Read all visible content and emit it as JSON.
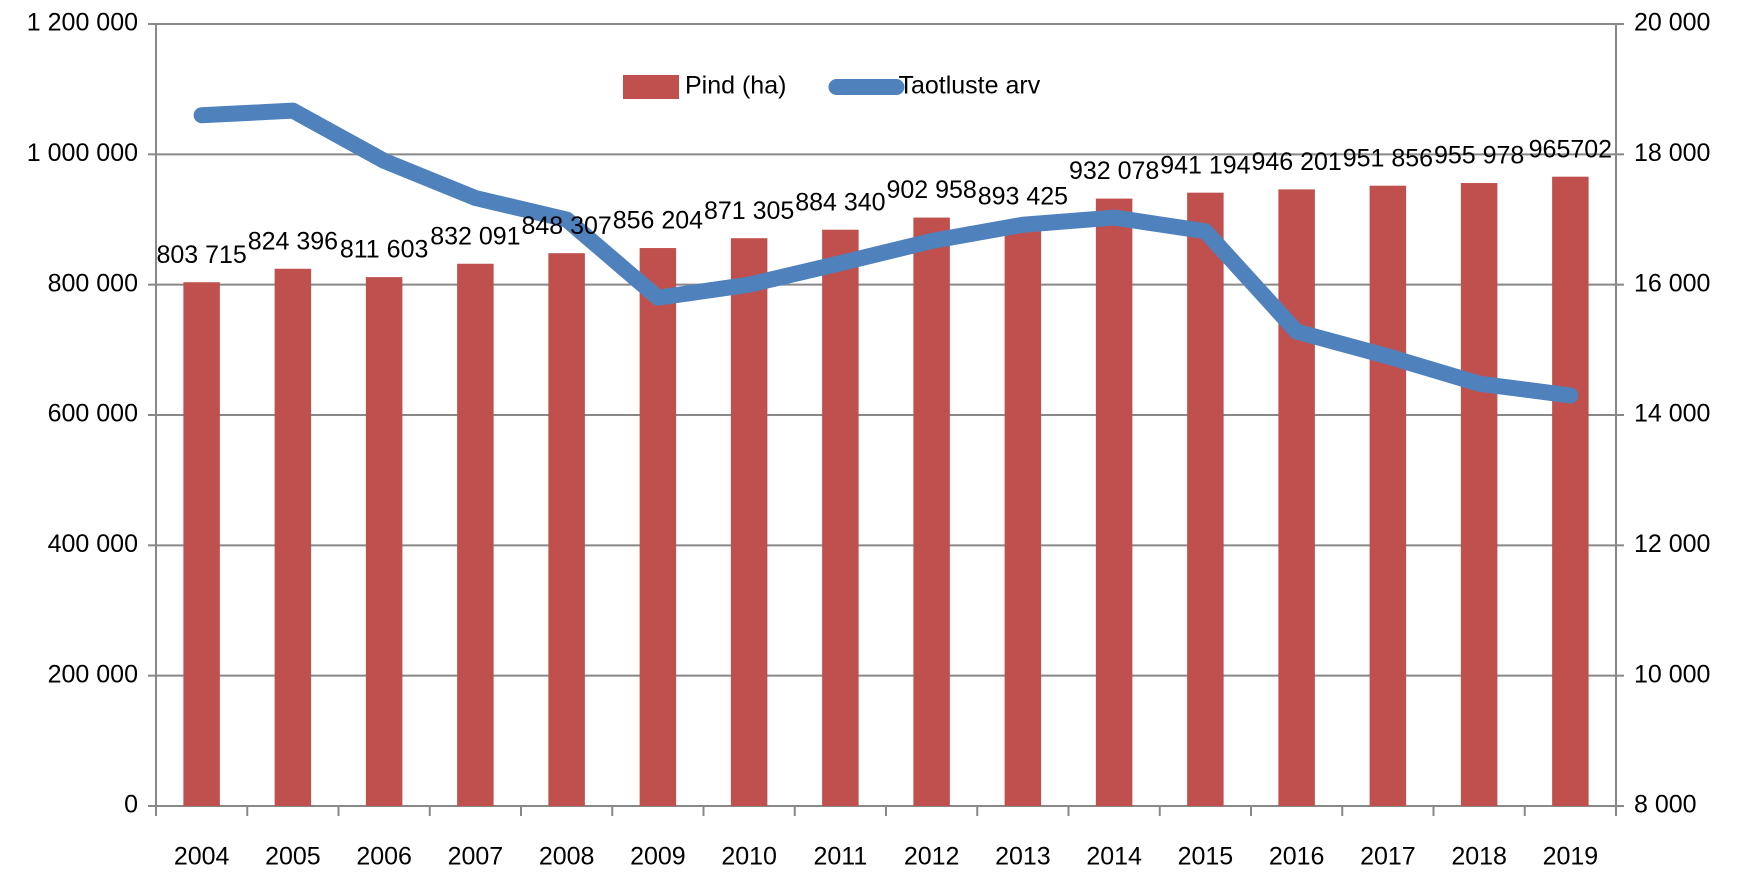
{
  "chart_data": {
    "type": "bar-line",
    "categories": [
      "2004",
      "2005",
      "2006",
      "2007",
      "2008",
      "2009",
      "2010",
      "2011",
      "2012",
      "2013",
      "2014",
      "2015",
      "2016",
      "2017",
      "2018",
      "2019"
    ],
    "series": [
      {
        "name": "Pind (ha)",
        "type": "bar",
        "color": "#c0504d",
        "axis": "y",
        "values": [
          803715,
          824396,
          811603,
          832091,
          848307,
          856204,
          871305,
          884340,
          902958,
          893425,
          932078,
          941194,
          946201,
          951856,
          955978,
          965702
        ],
        "value_labels": [
          "803 715",
          "824 396",
          "811 603",
          "832 091",
          "848 307",
          "856 204",
          "871 305",
          "884 340",
          "902 958",
          "893 425",
          "932 078",
          "941 194",
          "946 201",
          "951 856",
          "955 978",
          "965702"
        ]
      },
      {
        "name": "Taotluste arv",
        "type": "line",
        "color": "#4f81bd",
        "axis": "y2",
        "values": [
          18600,
          18670,
          17900,
          17330,
          17000,
          15800,
          16000,
          16330,
          16670,
          16920,
          17030,
          16820,
          15280,
          14900,
          14480,
          14300
        ]
      }
    ],
    "ylim": [
      0,
      1200000
    ],
    "yticks": [
      0,
      {
        "value": 200000,
        "label": "200 000"
      },
      {
        "value": 400000,
        "label": "400 000"
      },
      {
        "value": 600000,
        "label": "600 000"
      },
      {
        "value": 800000,
        "label": "800 000"
      },
      {
        "value": 1000000,
        "label": "1 000 000"
      },
      {
        "value": 1200000,
        "label": "1 200 000"
      }
    ],
    "y2lim": [
      8000,
      20000
    ],
    "y2ticks": [
      {
        "value": 8000,
        "label": "8 000"
      },
      {
        "value": 10000,
        "label": "10 000"
      },
      {
        "value": 12000,
        "label": "12 000"
      },
      {
        "value": 14000,
        "label": "14 000"
      },
      {
        "value": 16000,
        "label": "16 000"
      },
      {
        "value": 18000,
        "label": "18 000"
      },
      {
        "value": 20000,
        "label": "20 000"
      }
    ],
    "grid": true,
    "legend": "top"
  }
}
